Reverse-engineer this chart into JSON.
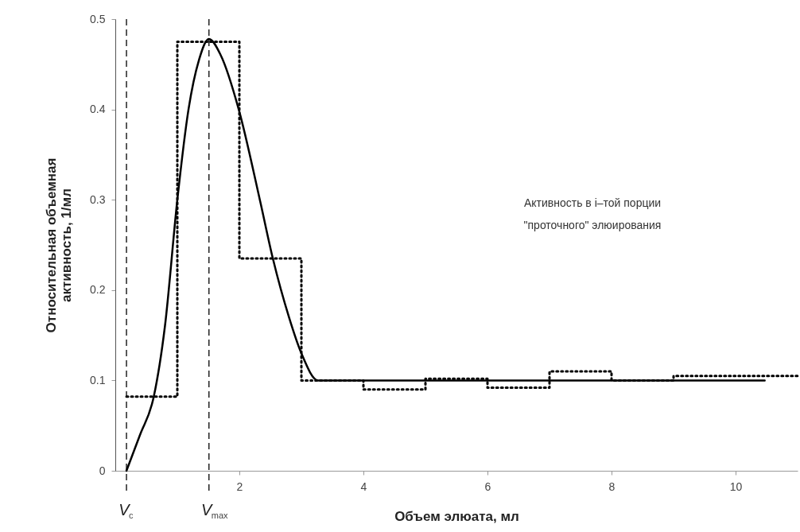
{
  "chart_data": {
    "type": "line",
    "xlabel": "Объем элюата, мл",
    "ylabel": "Относительная объемная активность, 1/мл",
    "xlim": [
      0,
      11
    ],
    "ylim": [
      0,
      0.5
    ],
    "xticks": [
      2,
      4,
      6,
      8,
      10
    ],
    "yticks": [
      0,
      0.1,
      0.2,
      0.3,
      0.4,
      0.5
    ],
    "grid": false,
    "series": [
      {
        "color": "#000000",
        "line_style": "solid",
        "x": [
          0.18,
          0.4,
          0.62,
          0.8,
          1.0,
          1.18,
          1.35,
          1.51,
          1.7,
          1.99,
          2.33,
          2.54,
          2.8,
          3.0,
          3.27,
          3.5,
          4,
          6,
          8,
          10.47
        ],
        "values": [
          0,
          0.04,
          0.082,
          0.16,
          0.3,
          0.4,
          0.455,
          0.478,
          0.46,
          0.4,
          0.3,
          0.235,
          0.17,
          0.13,
          0.1,
          0.1,
          0.1,
          0.1,
          0.1,
          0.1
        ]
      },
      {
        "type": "step",
        "color": "#000000",
        "line_style": "dotted",
        "x": [
          0.18,
          1,
          2,
          3,
          4,
          5,
          6,
          7,
          8,
          9,
          11
        ],
        "values": [
          0.082,
          0.475,
          0.235,
          0.1,
          0.09,
          0.102,
          0.092,
          0.11,
          0.1,
          0.105,
          0.105
        ]
      }
    ],
    "ref_lines": [
      {
        "axis": "x",
        "value": 0.18,
        "label": "V$_{c}$",
        "line_style": "dashed"
      },
      {
        "axis": "x",
        "value": 1.51,
        "label": "V$_{max}$",
        "line_style": "dashed"
      }
    ],
    "annotations": [
      "Активность в i–той порции \"проточного\" элюирования"
    ]
  }
}
